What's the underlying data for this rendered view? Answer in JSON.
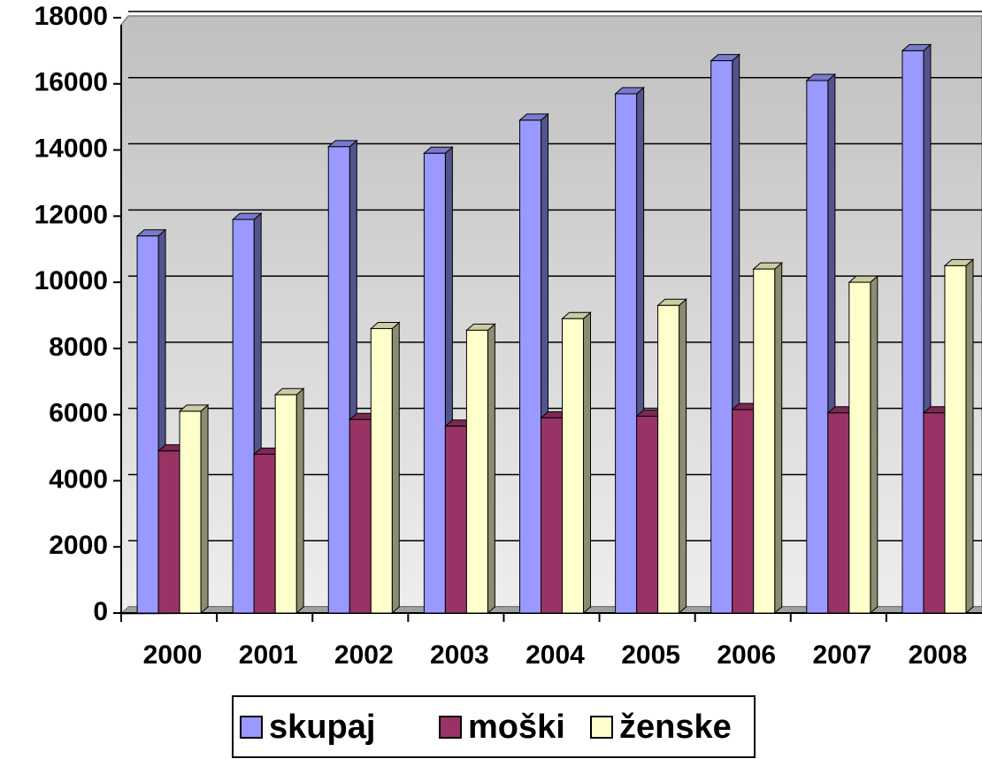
{
  "chart_data": {
    "type": "bar3d",
    "categories": [
      "2000",
      "2001",
      "2002",
      "2003",
      "2004",
      "2005",
      "2006",
      "2007",
      "2008"
    ],
    "series": [
      {
        "name": "skupaj",
        "color": "#9999ff",
        "values": [
          11400,
          11900,
          14100,
          13900,
          14900,
          15700,
          16700,
          16100,
          17000
        ]
      },
      {
        "name": "moški",
        "color": "#993366",
        "values": [
          4900,
          4800,
          5850,
          5650,
          5900,
          5950,
          6150,
          6050,
          6050
        ]
      },
      {
        "name": "ženske",
        "color": "#ffffcc",
        "values": [
          6100,
          6600,
          8600,
          8550,
          8900,
          9300,
          10400,
          10000,
          10500
        ]
      }
    ],
    "ylim": [
      0,
      18000
    ],
    "yticks": [
      0,
      2000,
      4000,
      6000,
      8000,
      10000,
      12000,
      14000,
      16000,
      18000
    ],
    "grid": true,
    "legend": "bottom"
  }
}
